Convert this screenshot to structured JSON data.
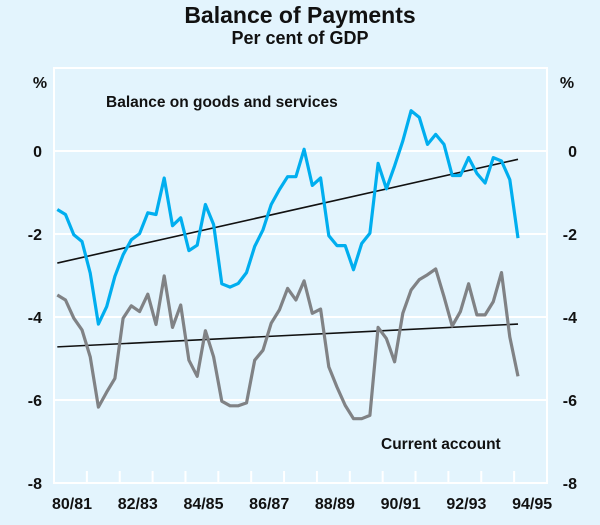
{
  "chart_data": {
    "type": "line",
    "title": "Balance of Payments",
    "subtitle": "Per cent of GDP",
    "ylabel_left": "%",
    "ylabel_right": "%",
    "ylim": [
      -8,
      2
    ],
    "yticks": [
      0,
      -2,
      -4,
      -6,
      -8
    ],
    "ytick_labels": [
      "0",
      "-2",
      "-4",
      "-6",
      "-8"
    ],
    "xtick_labels": [
      "80/81",
      "82/83",
      "84/85",
      "86/87",
      "88/89",
      "90/91",
      "92/93",
      "94/95"
    ],
    "x_frequency": "quarterly",
    "x_start": "Sep 1980",
    "x_end": "Sep 1994",
    "grid": true,
    "colors": {
      "background": "#e3f4fd",
      "goods_services": "#00aeef",
      "current_account": "#808285",
      "trend": "#111111",
      "grid": "#ffffff"
    },
    "series": [
      {
        "name": "Balance on goods and services",
        "values": [
          -1.41,
          -1.53,
          -2.02,
          -2.18,
          -2.94,
          -4.17,
          -3.75,
          -3.02,
          -2.5,
          -2.14,
          -1.99,
          -1.49,
          -1.53,
          -0.65,
          -1.8,
          -1.61,
          -2.4,
          -2.27,
          -1.29,
          -1.77,
          -3.2,
          -3.28,
          -3.19,
          -2.93,
          -2.3,
          -1.9,
          -1.29,
          -0.93,
          -0.62,
          -0.62,
          0.04,
          -0.83,
          -0.65,
          -2.04,
          -2.28,
          -2.28,
          -2.86,
          -2.23,
          -1.98,
          -0.3,
          -0.91,
          -0.36,
          0.24,
          0.97,
          0.81,
          0.16,
          0.4,
          0.16,
          -0.59,
          -0.59,
          -0.16,
          -0.54,
          -0.77,
          -0.16,
          -0.24,
          -0.69,
          -2.1
        ],
        "trend": [
          -2.7,
          -0.2
        ]
      },
      {
        "name": "Current account",
        "values": [
          -3.47,
          -3.59,
          -4.03,
          -4.31,
          -4.96,
          -6.17,
          -5.81,
          -5.48,
          -4.03,
          -3.73,
          -3.87,
          -3.45,
          -4.18,
          -3.01,
          -4.25,
          -3.71,
          -5.04,
          -5.43,
          -4.33,
          -4.96,
          -6.03,
          -6.14,
          -6.14,
          -6.07,
          -5.04,
          -4.8,
          -4.15,
          -3.83,
          -3.31,
          -3.59,
          -3.13,
          -3.91,
          -3.81,
          -5.2,
          -5.69,
          -6.13,
          -6.45,
          -6.45,
          -6.37,
          -4.25,
          -4.52,
          -5.08,
          -3.91,
          -3.35,
          -3.1,
          -2.98,
          -2.84,
          -3.51,
          -4.22,
          -3.87,
          -3.2,
          -3.95,
          -3.95,
          -3.63,
          -2.93,
          -4.48,
          -5.43
        ],
        "trend": [
          -4.72,
          -4.17
        ]
      }
    ]
  }
}
